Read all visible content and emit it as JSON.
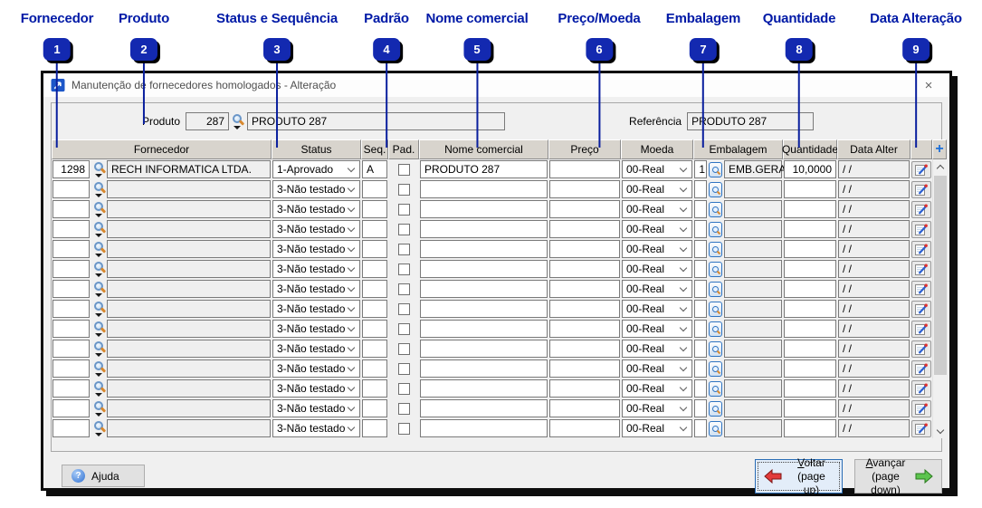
{
  "annotations": [
    {
      "num": "1",
      "label": "Fornecedor"
    },
    {
      "num": "2",
      "label": "Produto"
    },
    {
      "num": "3",
      "label": "Status e Sequência"
    },
    {
      "num": "4",
      "label": "Padrão"
    },
    {
      "num": "5",
      "label": "Nome comercial"
    },
    {
      "num": "6",
      "label": "Preço/Moeda"
    },
    {
      "num": "7",
      "label": "Embalagem"
    },
    {
      "num": "8",
      "label": "Quantidade"
    },
    {
      "num": "9",
      "label": "Data Alteração"
    }
  ],
  "window": {
    "title": "Manutenção de fornecedores homologados - Alteração",
    "close_glyph": "×"
  },
  "product_bar": {
    "product_label": "Produto",
    "product_code": "287",
    "product_name": "PRODUTO 287",
    "reference_label": "Referência",
    "reference_value": "PRODUTO 287"
  },
  "table": {
    "headers": {
      "fornecedor": "Fornecedor",
      "status": "Status",
      "seq": "Seq.",
      "pad": "Pad.",
      "nome": "Nome comercial",
      "preco": "Preço",
      "moeda": "Moeda",
      "embalagem": "Embalagem",
      "quantidade": "Quantidade",
      "data": "Data Alter",
      "add_glyph": "+"
    },
    "rows": [
      {
        "code": "1298",
        "supplier": "RECH INFORMATICA LTDA.",
        "status": "1-Aprovado",
        "seq": "A",
        "pad": false,
        "trade_name": "PRODUTO 287",
        "price": "",
        "currency": "00-Real",
        "pack_code": "1",
        "pack_name": "EMB.GERAL",
        "quantity": "10,0000",
        "date_changed": "/ /"
      },
      {
        "code": "",
        "supplier": "",
        "status": "3-Não testado",
        "seq": "",
        "pad": false,
        "trade_name": "",
        "price": "",
        "currency": "00-Real",
        "pack_code": "",
        "pack_name": "",
        "quantity": "",
        "date_changed": "/ /"
      },
      {
        "code": "",
        "supplier": "",
        "status": "3-Não testado",
        "seq": "",
        "pad": false,
        "trade_name": "",
        "price": "",
        "currency": "00-Real",
        "pack_code": "",
        "pack_name": "",
        "quantity": "",
        "date_changed": "/ /"
      },
      {
        "code": "",
        "supplier": "",
        "status": "3-Não testado",
        "seq": "",
        "pad": false,
        "trade_name": "",
        "price": "",
        "currency": "00-Real",
        "pack_code": "",
        "pack_name": "",
        "quantity": "",
        "date_changed": "/ /"
      },
      {
        "code": "",
        "supplier": "",
        "status": "3-Não testado",
        "seq": "",
        "pad": false,
        "trade_name": "",
        "price": "",
        "currency": "00-Real",
        "pack_code": "",
        "pack_name": "",
        "quantity": "",
        "date_changed": "/ /"
      },
      {
        "code": "",
        "supplier": "",
        "status": "3-Não testado",
        "seq": "",
        "pad": false,
        "trade_name": "",
        "price": "",
        "currency": "00-Real",
        "pack_code": "",
        "pack_name": "",
        "quantity": "",
        "date_changed": "/ /"
      },
      {
        "code": "",
        "supplier": "",
        "status": "3-Não testado",
        "seq": "",
        "pad": false,
        "trade_name": "",
        "price": "",
        "currency": "00-Real",
        "pack_code": "",
        "pack_name": "",
        "quantity": "",
        "date_changed": "/ /"
      },
      {
        "code": "",
        "supplier": "",
        "status": "3-Não testado",
        "seq": "",
        "pad": false,
        "trade_name": "",
        "price": "",
        "currency": "00-Real",
        "pack_code": "",
        "pack_name": "",
        "quantity": "",
        "date_changed": "/ /"
      },
      {
        "code": "",
        "supplier": "",
        "status": "3-Não testado",
        "seq": "",
        "pad": false,
        "trade_name": "",
        "price": "",
        "currency": "00-Real",
        "pack_code": "",
        "pack_name": "",
        "quantity": "",
        "date_changed": "/ /"
      },
      {
        "code": "",
        "supplier": "",
        "status": "3-Não testado",
        "seq": "",
        "pad": false,
        "trade_name": "",
        "price": "",
        "currency": "00-Real",
        "pack_code": "",
        "pack_name": "",
        "quantity": "",
        "date_changed": "/ /"
      },
      {
        "code": "",
        "supplier": "",
        "status": "3-Não testado",
        "seq": "",
        "pad": false,
        "trade_name": "",
        "price": "",
        "currency": "00-Real",
        "pack_code": "",
        "pack_name": "",
        "quantity": "",
        "date_changed": "/ /"
      },
      {
        "code": "",
        "supplier": "",
        "status": "3-Não testado",
        "seq": "",
        "pad": false,
        "trade_name": "",
        "price": "",
        "currency": "00-Real",
        "pack_code": "",
        "pack_name": "",
        "quantity": "",
        "date_changed": "/ /"
      },
      {
        "code": "",
        "supplier": "",
        "status": "3-Não testado",
        "seq": "",
        "pad": false,
        "trade_name": "",
        "price": "",
        "currency": "00-Real",
        "pack_code": "",
        "pack_name": "",
        "quantity": "",
        "date_changed": "/ /"
      },
      {
        "code": "",
        "supplier": "",
        "status": "3-Não testado",
        "seq": "",
        "pad": false,
        "trade_name": "",
        "price": "",
        "currency": "00-Real",
        "pack_code": "",
        "pack_name": "",
        "quantity": "",
        "date_changed": "/ /"
      }
    ]
  },
  "footer": {
    "help": {
      "pre": "A",
      "key": "j",
      "post": "uda",
      "icon_glyph": "?"
    },
    "back": {
      "key": "V",
      "post": "oltar",
      "line2": "(page up)"
    },
    "forward": {
      "key": "A",
      "post": "vançar",
      "line2": "(page down)"
    }
  }
}
